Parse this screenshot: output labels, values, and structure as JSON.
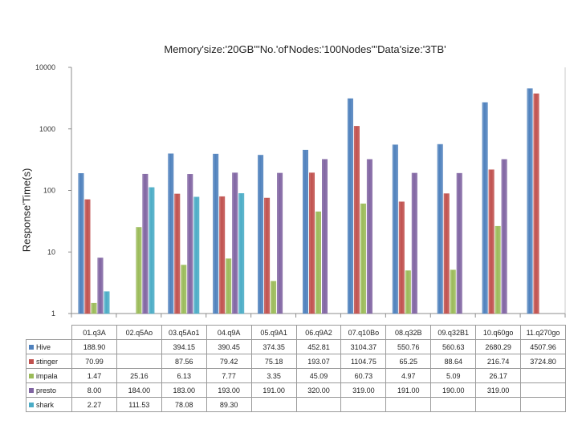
{
  "chart_data": {
    "type": "bar",
    "title": "Memory'size:'20GB'''No.'of'Nodes:'100Nodes'''Data'size:'3TB'",
    "ylabel": "Response'Time(s)",
    "xlabel": "",
    "yscale": "log",
    "ylim": [
      1,
      10000
    ],
    "yticks": [
      "1",
      "10",
      "100",
      "1000",
      "10000"
    ],
    "categories": [
      "01.q3A",
      "02.q5Ao",
      "03.q5Ao1",
      "04.q9A",
      "05.q9A1",
      "06.q9A2",
      "07.q10Bo",
      "08.q32B",
      "09.q32B1",
      "10.q60go",
      "11.q270go"
    ],
    "series": [
      {
        "name": "Hive",
        "color": "#4f81bd",
        "values": [
          188.9,
          null,
          394.15,
          390.45,
          374.35,
          452.81,
          3104.37,
          550.76,
          560.63,
          2680.29,
          4507.96
        ],
        "labels": [
          "188.90",
          "",
          "394.15",
          "390.45",
          "374.35",
          "452.81",
          "3104.37",
          "550.76",
          "560.63",
          "2680.29",
          "4507.96"
        ]
      },
      {
        "name": "stinger",
        "color": "#c0504d",
        "values": [
          70.99,
          null,
          87.56,
          79.42,
          75.18,
          193.07,
          1104.75,
          65.25,
          88.64,
          216.74,
          3724.8
        ],
        "labels": [
          "70.99",
          "",
          "87.56",
          "79.42",
          "75.18",
          "193.07",
          "1104.75",
          "65.25",
          "88.64",
          "216.74",
          "3724.80"
        ]
      },
      {
        "name": "impala",
        "color": "#9bbb59",
        "values": [
          1.47,
          25.16,
          6.13,
          7.77,
          3.35,
          45.09,
          60.73,
          4.97,
          5.09,
          26.17,
          null
        ],
        "labels": [
          "1.47",
          "25.16",
          "6.13",
          "7.77",
          "3.35",
          "45.09",
          "60.73",
          "4.97",
          "5.09",
          "26.17",
          ""
        ]
      },
      {
        "name": "presto",
        "color": "#8064a2",
        "values": [
          8.0,
          184.0,
          183.0,
          193.0,
          191.0,
          320.0,
          319.0,
          191.0,
          190.0,
          319.0,
          null
        ],
        "labels": [
          "8.00",
          "184.00",
          "183.00",
          "193.00",
          "191.00",
          "320.00",
          "319.00",
          "191.00",
          "190.00",
          "319.00",
          ""
        ]
      },
      {
        "name": "shark",
        "color": "#4bacc6",
        "values": [
          2.27,
          111.53,
          78.08,
          89.3,
          null,
          null,
          null,
          null,
          null,
          null,
          null
        ],
        "labels": [
          "2.27",
          "111.53",
          "78.08",
          "89.30",
          "",
          "",
          "",
          "",
          "",
          "",
          ""
        ]
      }
    ],
    "legend": "table-left",
    "grid": false
  }
}
